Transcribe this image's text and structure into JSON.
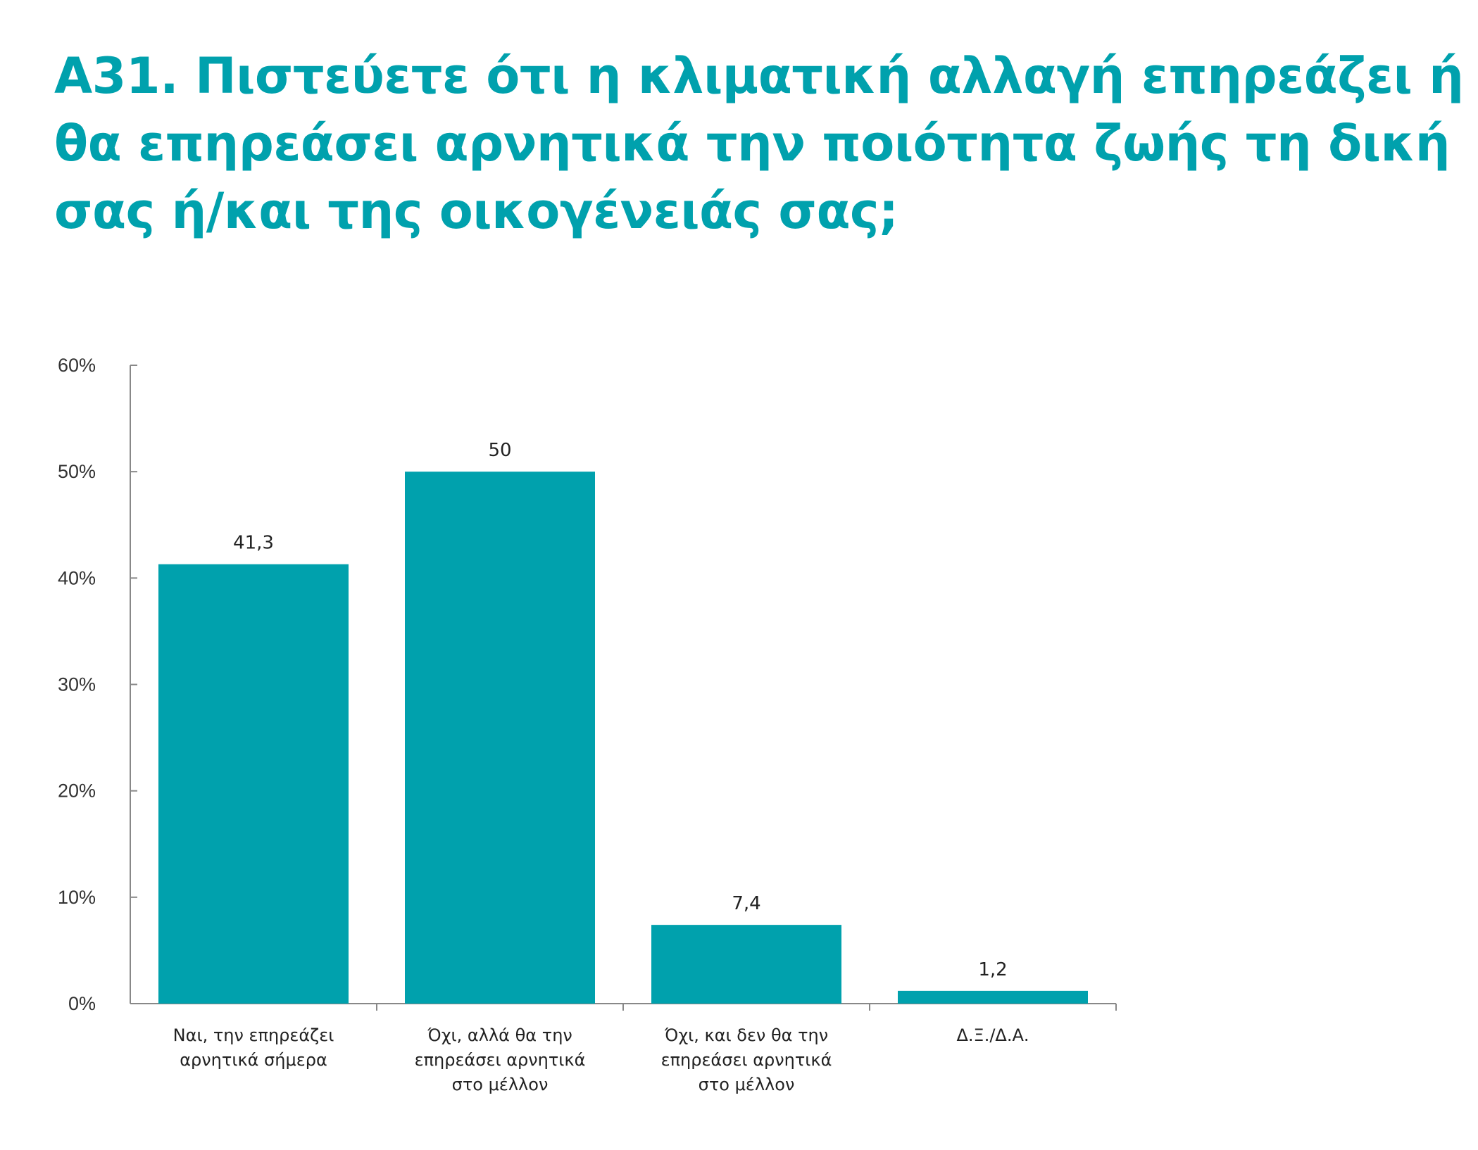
{
  "title": {
    "lines": [
      "Α31. Πιστεύετε ότι η κλιματική αλλαγή επηρεάζει ή",
      "θα επηρεάσει αρνητικά την ποιότητα ζωής τη δική",
      "σας ή/και της οικογένειάς σας;"
    ]
  },
  "chart_data": {
    "type": "bar",
    "categories": [
      [
        "Ναι, την επηρεάζει",
        "αρνητικά σήμερα"
      ],
      [
        "Όχι, αλλά θα την",
        "επηρεάσει αρνητικά",
        "στο μέλλον"
      ],
      [
        "Όχι, και δεν θα την",
        "επηρεάσει αρνητικά",
        "στο μέλλον"
      ],
      [
        "Δ.Ξ./Δ.Α."
      ]
    ],
    "values": [
      41.3,
      50,
      7.4,
      1.2
    ],
    "value_labels": [
      "41,3",
      "50",
      "7,4",
      "1,2"
    ],
    "yticks": [
      0,
      10,
      20,
      30,
      40,
      50,
      60
    ],
    "ytick_labels": [
      "0%",
      "10%",
      "20%",
      "30%",
      "40%",
      "50%",
      "60%"
    ],
    "ylim": [
      0,
      60
    ],
    "grid": false,
    "legend": "none",
    "bar_color": "#00a1ad",
    "axis_color": "#888888"
  }
}
